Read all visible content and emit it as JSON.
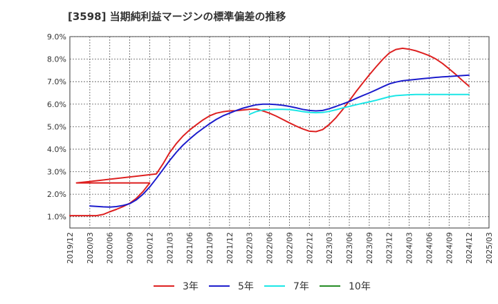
{
  "chart_data": {
    "type": "line",
    "title": "[3598]  当期純利益マージンの標準偏差の推移",
    "xlabel": "",
    "ylabel": "",
    "ylim": [
      0.5,
      9.0
    ],
    "grid": true,
    "legend_position": "bottom",
    "x_tick_labels": [
      "2019/12",
      "2020/03",
      "2020/06",
      "2020/09",
      "2020/12",
      "2021/03",
      "2021/06",
      "2021/09",
      "2021/12",
      "2022/03",
      "2022/06",
      "2022/09",
      "2022/12",
      "2023/03",
      "2023/06",
      "2023/09",
      "2023/12",
      "2024/03",
      "2024/06",
      "2024/09",
      "2024/12",
      "2025/03"
    ],
    "y_ticks": [
      1.0,
      2.0,
      3.0,
      4.0,
      5.0,
      6.0,
      7.0,
      8.0,
      9.0
    ],
    "y_tick_labels": [
      "1.0%",
      "2.0%",
      "3.0%",
      "4.0%",
      "5.0%",
      "6.0%",
      "7.0%",
      "8.0%",
      "9.0%"
    ],
    "series": [
      {
        "name": "3年",
        "color": "#dd1f1f",
        "points": [
          [
            "2019/12",
            1.05
          ],
          [
            "2020/01",
            1.05
          ],
          [
            "2020/02",
            1.05
          ],
          [
            "2020/03",
            1.05
          ],
          [
            "2020/04",
            1.05
          ],
          [
            "2020/05",
            1.1
          ],
          [
            "2020/06",
            1.22
          ],
          [
            "2020/07",
            1.33
          ],
          [
            "2020/08",
            1.45
          ],
          [
            "2020/09",
            1.6
          ],
          [
            "2020/10",
            1.82
          ],
          [
            "2020/11",
            2.12
          ],
          [
            "2020/12",
            2.5
          ],
          [
            "2020/01",
            2.5
          ],
          [
            "2021/01",
            2.9
          ],
          [
            "2021/02",
            3.35
          ],
          [
            "2021/03",
            3.85
          ],
          [
            "2021/04",
            4.25
          ],
          [
            "2021/05",
            4.58
          ],
          [
            "2021/06",
            4.85
          ],
          [
            "2021/07",
            5.08
          ],
          [
            "2021/08",
            5.3
          ],
          [
            "2021/09",
            5.48
          ],
          [
            "2021/10",
            5.6
          ],
          [
            "2021/11",
            5.66
          ],
          [
            "2021/12",
            5.7
          ],
          [
            "2022/01",
            5.71
          ],
          [
            "2022/02",
            5.74
          ],
          [
            "2022/03",
            5.77
          ],
          [
            "2022/04",
            5.78
          ],
          [
            "2022/05",
            5.7
          ],
          [
            "2022/06",
            5.6
          ],
          [
            "2022/07",
            5.47
          ],
          [
            "2022/08",
            5.32
          ],
          [
            "2022/09",
            5.17
          ],
          [
            "2022/10",
            5.03
          ],
          [
            "2022/11",
            4.9
          ],
          [
            "2022/12",
            4.8
          ],
          [
            "2023/01",
            4.78
          ],
          [
            "2023/02",
            4.87
          ],
          [
            "2023/03",
            5.1
          ],
          [
            "2023/04",
            5.4
          ],
          [
            "2023/05",
            5.76
          ],
          [
            "2023/06",
            6.15
          ],
          [
            "2023/07",
            6.55
          ],
          [
            "2023/08",
            6.93
          ],
          [
            "2023/09",
            7.3
          ],
          [
            "2023/10",
            7.65
          ],
          [
            "2023/11",
            7.98
          ],
          [
            "2023/12",
            8.27
          ],
          [
            "2024/01",
            8.43
          ],
          [
            "2024/02",
            8.48
          ],
          [
            "2024/03",
            8.44
          ],
          [
            "2024/04",
            8.37
          ],
          [
            "2024/05",
            8.27
          ],
          [
            "2024/06",
            8.16
          ],
          [
            "2024/07",
            8.01
          ],
          [
            "2024/08",
            7.81
          ],
          [
            "2024/09",
            7.57
          ],
          [
            "2024/10",
            7.32
          ],
          [
            "2024/11",
            7.05
          ],
          [
            "2024/12",
            6.8
          ]
        ]
      },
      {
        "name": "5年",
        "color": "#1b1bcc",
        "points": [
          [
            "2020/03",
            1.48
          ],
          [
            "2020/04",
            1.46
          ],
          [
            "2020/05",
            1.44
          ],
          [
            "2020/06",
            1.43
          ],
          [
            "2020/07",
            1.45
          ],
          [
            "2020/08",
            1.5
          ],
          [
            "2020/09",
            1.58
          ],
          [
            "2020/10",
            1.75
          ],
          [
            "2020/11",
            2.0
          ],
          [
            "2020/12",
            2.32
          ],
          [
            "2021/01",
            2.7
          ],
          [
            "2021/02",
            3.1
          ],
          [
            "2021/03",
            3.5
          ],
          [
            "2021/04",
            3.86
          ],
          [
            "2021/05",
            4.18
          ],
          [
            "2021/06",
            4.45
          ],
          [
            "2021/07",
            4.7
          ],
          [
            "2021/08",
            4.92
          ],
          [
            "2021/09",
            5.13
          ],
          [
            "2021/10",
            5.32
          ],
          [
            "2021/11",
            5.48
          ],
          [
            "2021/12",
            5.6
          ],
          [
            "2022/01",
            5.72
          ],
          [
            "2022/02",
            5.82
          ],
          [
            "2022/03",
            5.9
          ],
          [
            "2022/04",
            5.97
          ],
          [
            "2022/05",
            6.0
          ],
          [
            "2022/06",
            6.0
          ],
          [
            "2022/07",
            5.98
          ],
          [
            "2022/08",
            5.95
          ],
          [
            "2022/09",
            5.9
          ],
          [
            "2022/10",
            5.84
          ],
          [
            "2022/11",
            5.77
          ],
          [
            "2022/12",
            5.72
          ],
          [
            "2023/01",
            5.7
          ],
          [
            "2023/02",
            5.72
          ],
          [
            "2023/03",
            5.8
          ],
          [
            "2023/04",
            5.9
          ],
          [
            "2023/05",
            6.01
          ],
          [
            "2023/06",
            6.12
          ],
          [
            "2023/07",
            6.25
          ],
          [
            "2023/08",
            6.38
          ],
          [
            "2023/09",
            6.5
          ],
          [
            "2023/10",
            6.63
          ],
          [
            "2023/11",
            6.77
          ],
          [
            "2023/12",
            6.9
          ],
          [
            "2024/01",
            6.98
          ],
          [
            "2024/02",
            7.04
          ],
          [
            "2024/03",
            7.07
          ],
          [
            "2024/04",
            7.1
          ],
          [
            "2024/05",
            7.13
          ],
          [
            "2024/06",
            7.16
          ],
          [
            "2024/07",
            7.19
          ],
          [
            "2024/08",
            7.21
          ],
          [
            "2024/09",
            7.23
          ],
          [
            "2024/10",
            7.25
          ],
          [
            "2024/11",
            7.27
          ],
          [
            "2024/12",
            7.29
          ]
        ]
      },
      {
        "name": "7年",
        "color": "#19e6e6",
        "points": [
          [
            "2022/03",
            5.55
          ],
          [
            "2022/04",
            5.67
          ],
          [
            "2022/05",
            5.74
          ],
          [
            "2022/06",
            5.76
          ],
          [
            "2022/07",
            5.77
          ],
          [
            "2022/08",
            5.77
          ],
          [
            "2022/09",
            5.76
          ],
          [
            "2022/10",
            5.72
          ],
          [
            "2022/11",
            5.67
          ],
          [
            "2022/12",
            5.63
          ],
          [
            "2023/01",
            5.62
          ],
          [
            "2023/02",
            5.63
          ],
          [
            "2023/03",
            5.68
          ],
          [
            "2023/04",
            5.75
          ],
          [
            "2023/05",
            5.83
          ],
          [
            "2023/06",
            5.9
          ],
          [
            "2023/07",
            5.97
          ],
          [
            "2023/08",
            6.04
          ],
          [
            "2023/09",
            6.1
          ],
          [
            "2023/10",
            6.17
          ],
          [
            "2023/11",
            6.25
          ],
          [
            "2023/12",
            6.33
          ],
          [
            "2024/01",
            6.38
          ],
          [
            "2024/02",
            6.4
          ],
          [
            "2024/03",
            6.42
          ],
          [
            "2024/04",
            6.43
          ],
          [
            "2024/05",
            6.43
          ],
          [
            "2024/06",
            6.43
          ],
          [
            "2024/07",
            6.43
          ],
          [
            "2024/08",
            6.43
          ],
          [
            "2024/09",
            6.43
          ],
          [
            "2024/10",
            6.43
          ],
          [
            "2024/11",
            6.43
          ],
          [
            "2024/12",
            6.43
          ]
        ]
      },
      {
        "name": "10年",
        "color": "#228b22",
        "points": []
      }
    ]
  }
}
